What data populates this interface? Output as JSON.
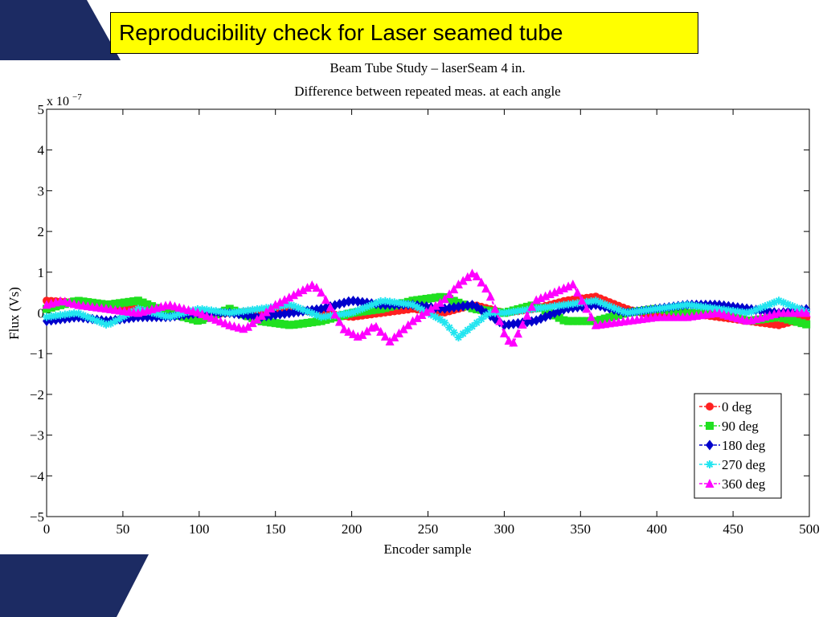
{
  "slide": {
    "title": "Reproducibility check for Laser seamed tube",
    "accent_color": "#1c2b63",
    "title_background": "#ffff00"
  },
  "chart_data": {
    "type": "line",
    "title": "Beam Tube Study – laserSeam 4 in.",
    "subtitle": "Difference between repeated meas. at each angle",
    "xlabel": "Encoder sample",
    "ylabel": "Flux (Vs)",
    "exponent_label": "x 10",
    "exponent_power": "−7",
    "xlim": [
      0,
      500
    ],
    "ylim": [
      -5,
      5
    ],
    "x_ticks": [
      0,
      50,
      100,
      150,
      200,
      250,
      300,
      350,
      400,
      450,
      500
    ],
    "y_ticks": [
      -5,
      -4,
      -3,
      -2,
      -1,
      0,
      1,
      2,
      3,
      4,
      5
    ],
    "y_tick_labels": [
      "−5",
      "−4",
      "−3",
      "−2",
      "−1",
      "0",
      "1",
      "2",
      "3",
      "4",
      "5"
    ],
    "y_unit_scale": "1e-7",
    "grid": false,
    "legend_position": "bottom-right",
    "series": [
      {
        "name": "0 deg",
        "color": "#ff2020",
        "marker": "circle",
        "x": [
          0,
          20,
          40,
          60,
          80,
          100,
          120,
          140,
          160,
          180,
          200,
          220,
          240,
          260,
          280,
          300,
          320,
          340,
          360,
          380,
          400,
          420,
          440,
          460,
          480,
          500
        ],
        "y": [
          0.3,
          0.25,
          0.1,
          0.15,
          0.0,
          -0.05,
          0.0,
          0.05,
          0.1,
          0.0,
          -0.1,
          0.0,
          0.1,
          0.0,
          0.2,
          0.0,
          0.1,
          0.3,
          0.4,
          0.1,
          -0.1,
          0.0,
          -0.1,
          -0.2,
          -0.3,
          -0.1
        ]
      },
      {
        "name": "90 deg",
        "color": "#20e020",
        "marker": "square",
        "x": [
          0,
          20,
          40,
          60,
          80,
          100,
          120,
          140,
          160,
          180,
          200,
          220,
          240,
          260,
          280,
          300,
          320,
          340,
          360,
          380,
          400,
          420,
          440,
          460,
          480,
          500
        ],
        "y": [
          0.1,
          0.3,
          0.2,
          0.3,
          0.0,
          -0.2,
          0.1,
          -0.2,
          -0.3,
          -0.2,
          0.0,
          0.1,
          0.3,
          0.4,
          0.1,
          0.0,
          0.2,
          -0.2,
          -0.2,
          0.0,
          0.1,
          0.0,
          0.0,
          -0.2,
          -0.1,
          -0.3
        ]
      },
      {
        "name": "180 deg",
        "color": "#0000cc",
        "marker": "diamond",
        "x": [
          0,
          20,
          40,
          60,
          80,
          100,
          120,
          140,
          160,
          180,
          200,
          220,
          240,
          260,
          280,
          300,
          320,
          340,
          360,
          380,
          400,
          420,
          440,
          460,
          480,
          500
        ],
        "y": [
          -0.2,
          -0.1,
          -0.2,
          -0.1,
          -0.1,
          0.0,
          0.0,
          -0.1,
          0.0,
          0.1,
          0.3,
          0.2,
          0.2,
          0.1,
          0.2,
          -0.3,
          -0.2,
          0.1,
          0.2,
          0.0,
          0.1,
          0.2,
          0.2,
          0.1,
          0.0,
          0.1
        ]
      },
      {
        "name": "270 deg",
        "color": "#22e5f0",
        "marker": "star",
        "x": [
          0,
          20,
          40,
          60,
          80,
          100,
          120,
          140,
          160,
          180,
          200,
          220,
          240,
          260,
          270,
          280,
          290,
          300,
          320,
          340,
          360,
          380,
          400,
          420,
          440,
          460,
          480,
          500
        ],
        "y": [
          -0.1,
          0.0,
          -0.3,
          0.1,
          -0.1,
          0.1,
          0.0,
          0.1,
          0.2,
          -0.1,
          0.0,
          0.3,
          0.2,
          -0.2,
          -0.6,
          -0.3,
          0.0,
          0.0,
          0.1,
          0.2,
          0.3,
          0.0,
          0.1,
          0.2,
          0.1,
          0.0,
          0.3,
          0.0
        ]
      },
      {
        "name": "360 deg",
        "color": "#ff00ff",
        "marker": "triangle",
        "x": [
          0,
          10,
          20,
          40,
          60,
          80,
          100,
          120,
          130,
          150,
          170,
          175,
          180,
          195,
          205,
          215,
          225,
          240,
          260,
          270,
          280,
          290,
          300,
          305,
          320,
          345,
          360,
          380,
          400,
          420,
          440,
          460,
          480,
          500
        ],
        "y": [
          0.2,
          0.3,
          0.2,
          0.1,
          0.0,
          0.2,
          0.0,
          -0.3,
          -0.4,
          0.2,
          0.6,
          0.7,
          0.5,
          -0.4,
          -0.6,
          -0.3,
          -0.7,
          -0.2,
          0.3,
          0.7,
          1.0,
          0.5,
          -0.5,
          -0.8,
          0.3,
          0.7,
          -0.3,
          -0.2,
          -0.1,
          -0.1,
          0.0,
          -0.2,
          0.0,
          0.0
        ]
      }
    ]
  }
}
